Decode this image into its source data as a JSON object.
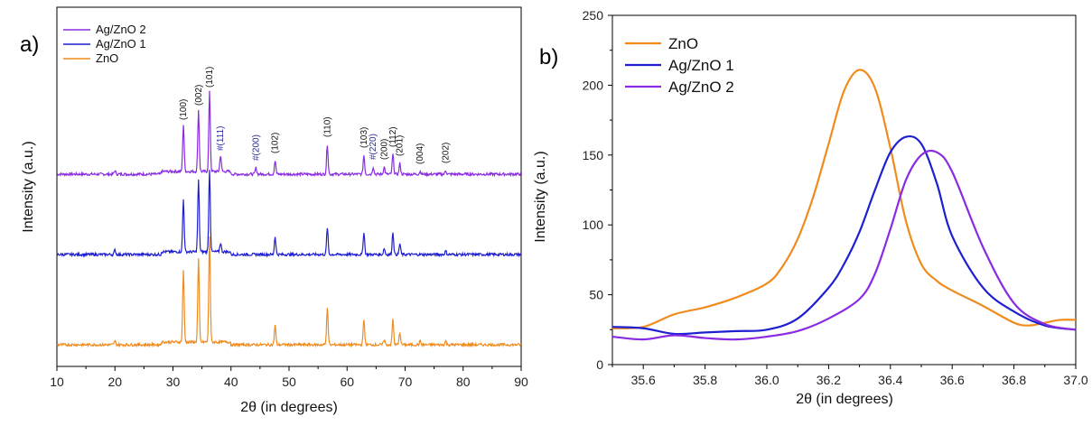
{
  "colors": {
    "zno": "#f08c1e",
    "ag1": "#1f1fd2",
    "ag2": "#8a2be2",
    "axis": "#000000"
  },
  "chart_data": [
    {
      "panel_label": "a)",
      "type": "line",
      "xlabel": "2θ (in degrees)",
      "ylabel": "Intensity (a.u.)",
      "xlim": [
        10,
        90
      ],
      "xticks": [
        "10",
        "20",
        "30",
        "40",
        "50",
        "60",
        "70",
        "80",
        "90"
      ],
      "y_ticks_shown": false,
      "stacked_offset": true,
      "legend_position": "top-left",
      "legend": [
        "Ag/ZnO 2",
        "Ag/ZnO 1",
        "ZnO"
      ],
      "series": [
        {
          "name": "Ag/ZnO 2",
          "stack_index": 2,
          "peaks": [
            {
              "x": 20.0,
              "h": 4
            },
            {
              "x": 31.8,
              "h": 52
            },
            {
              "x": 34.4,
              "h": 68
            },
            {
              "x": 36.3,
              "h": 88
            },
            {
              "x": 38.2,
              "h": 18
            },
            {
              "x": 44.3,
              "h": 7
            },
            {
              "x": 47.6,
              "h": 15
            },
            {
              "x": 56.6,
              "h": 33
            },
            {
              "x": 62.9,
              "h": 21
            },
            {
              "x": 64.5,
              "h": 8
            },
            {
              "x": 66.4,
              "h": 8
            },
            {
              "x": 67.9,
              "h": 22
            },
            {
              "x": 69.1,
              "h": 12
            },
            {
              "x": 72.6,
              "h": 3
            },
            {
              "x": 77.0,
              "h": 4
            }
          ]
        },
        {
          "name": "Ag/ZnO 1",
          "stack_index": 1,
          "peaks": [
            {
              "x": 20.0,
              "h": 5
            },
            {
              "x": 31.8,
              "h": 58
            },
            {
              "x": 34.4,
              "h": 80
            },
            {
              "x": 36.3,
              "h": 92
            },
            {
              "x": 38.2,
              "h": 10
            },
            {
              "x": 47.6,
              "h": 20
            },
            {
              "x": 56.6,
              "h": 30
            },
            {
              "x": 62.9,
              "h": 25
            },
            {
              "x": 66.4,
              "h": 7
            },
            {
              "x": 67.9,
              "h": 25
            },
            {
              "x": 69.1,
              "h": 12
            },
            {
              "x": 77.0,
              "h": 4
            }
          ]
        },
        {
          "name": "ZnO",
          "stack_index": 0,
          "peaks": [
            {
              "x": 20.0,
              "h": 4
            },
            {
              "x": 31.8,
              "h": 80
            },
            {
              "x": 34.4,
              "h": 92
            },
            {
              "x": 36.3,
              "h": 118
            },
            {
              "x": 47.6,
              "h": 22
            },
            {
              "x": 56.6,
              "h": 42
            },
            {
              "x": 62.9,
              "h": 28
            },
            {
              "x": 66.4,
              "h": 6
            },
            {
              "x": 67.9,
              "h": 28
            },
            {
              "x": 69.1,
              "h": 14
            },
            {
              "x": 72.6,
              "h": 4
            },
            {
              "x": 77.0,
              "h": 4
            }
          ]
        }
      ],
      "annotations": [
        {
          "text": "(100)",
          "x": 31.8,
          "ag": false
        },
        {
          "text": "(002)",
          "x": 34.4,
          "ag": false
        },
        {
          "text": "(101)",
          "x": 36.3,
          "ag": false
        },
        {
          "text": "#(111)",
          "x": 38.2,
          "ag": true
        },
        {
          "text": "#(200)",
          "x": 44.3,
          "ag": true
        },
        {
          "text": "(102)",
          "x": 47.6,
          "ag": false
        },
        {
          "text": "(110)",
          "x": 56.6,
          "ag": false
        },
        {
          "text": "(103)",
          "x": 62.9,
          "ag": false
        },
        {
          "text": "#(220)",
          "x": 64.5,
          "ag": true
        },
        {
          "text": "(200)",
          "x": 66.4,
          "ag": false
        },
        {
          "text": "(112)",
          "x": 67.9,
          "ag": false
        },
        {
          "text": "(201)",
          "x": 69.1,
          "ag": false
        },
        {
          "text": "(004)",
          "x": 72.6,
          "ag": false
        },
        {
          "text": "(202)",
          "x": 77.0,
          "ag": false
        }
      ]
    },
    {
      "panel_label": "b)",
      "type": "line",
      "xlabel": "2θ (in degrees)",
      "ylabel": "Intensity (a.u.)",
      "xlim": [
        35.5,
        37.0
      ],
      "ylim": [
        0,
        250
      ],
      "xticks": [
        "35.6",
        "35.8",
        "36.0",
        "36.2",
        "36.4",
        "36.6",
        "36.8",
        "37.0"
      ],
      "yticks": [
        "0",
        "50",
        "100",
        "150",
        "200",
        "250"
      ],
      "legend_position": "top-left",
      "legend": [
        "ZnO",
        "Ag/ZnO 1",
        "Ag/ZnO 2"
      ],
      "series": [
        {
          "name": "ZnO",
          "x": [
            35.5,
            35.6,
            35.7,
            35.8,
            35.9,
            36.0,
            36.05,
            36.1,
            36.15,
            36.2,
            36.25,
            36.3,
            36.35,
            36.4,
            36.45,
            36.5,
            36.55,
            36.6,
            36.7,
            36.8,
            36.85,
            36.9,
            36.95,
            37.0
          ],
          "y": [
            26,
            27,
            36,
            41,
            48,
            58,
            70,
            90,
            120,
            158,
            196,
            211,
            198,
            155,
            103,
            72,
            60,
            53,
            42,
            30,
            28,
            30,
            32,
            32
          ]
        },
        {
          "name": "Ag/ZnO 1",
          "x": [
            35.5,
            35.6,
            35.7,
            35.8,
            35.9,
            36.0,
            36.1,
            36.2,
            36.25,
            36.3,
            36.35,
            36.4,
            36.45,
            36.5,
            36.55,
            36.6,
            36.7,
            36.8,
            36.9,
            37.0
          ],
          "y": [
            27,
            26,
            22,
            23,
            24,
            25,
            33,
            55,
            72,
            95,
            125,
            152,
            163,
            158,
            130,
            92,
            55,
            38,
            28,
            25
          ]
        },
        {
          "name": "Ag/ZnO 2",
          "x": [
            35.5,
            35.6,
            35.7,
            35.8,
            35.9,
            36.0,
            36.1,
            36.2,
            36.3,
            36.35,
            36.4,
            36.45,
            36.5,
            36.55,
            36.6,
            36.7,
            36.8,
            36.9,
            37.0
          ],
          "y": [
            20,
            18,
            21,
            19,
            18,
            20,
            24,
            33,
            47,
            65,
            97,
            132,
            150,
            152,
            138,
            84,
            44,
            29,
            25
          ]
        }
      ]
    }
  ]
}
